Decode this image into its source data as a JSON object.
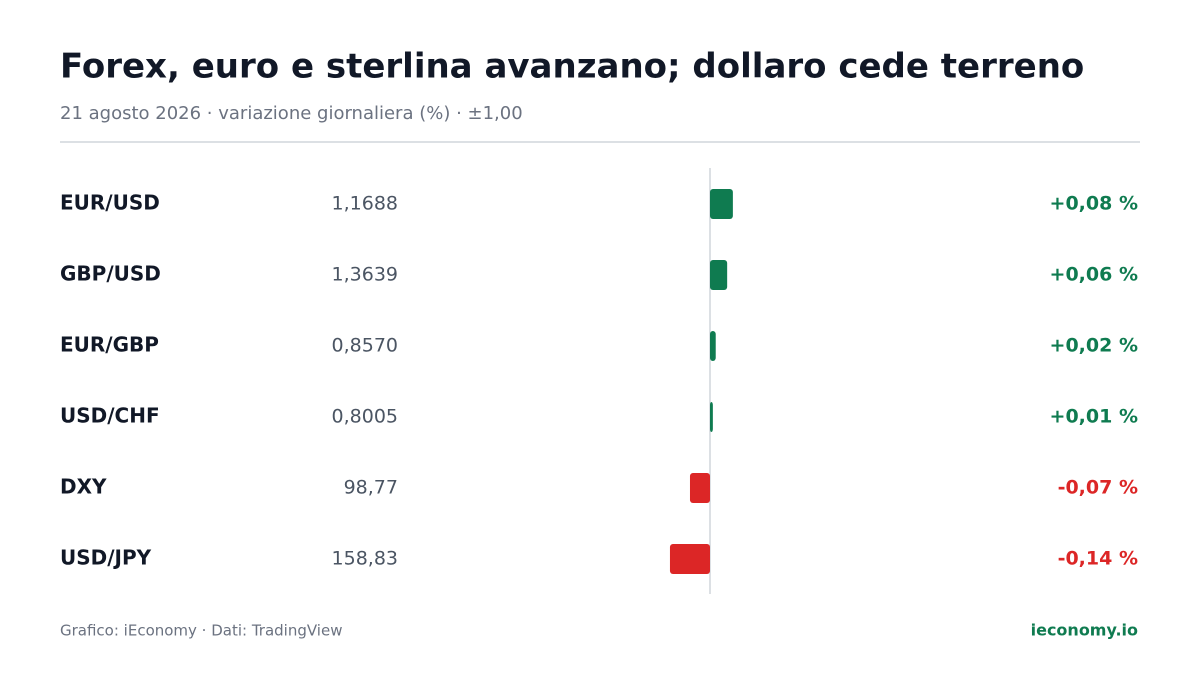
{
  "chart_data": {
    "type": "bar",
    "orientation": "horizontal",
    "title": "Forex, euro e sterlina avanzano; dollaro cede terreno",
    "subtitle": "21 agosto 2026 · variazione giornaliera (%) · ±1,00",
    "categories": [
      "EUR/USD",
      "GBP/USD",
      "EUR/GBP",
      "USD/CHF",
      "DXY",
      "USD/JPY"
    ],
    "prices": [
      "1,1688",
      "1,3639",
      "0,8570",
      "0,8005",
      "98,77",
      "158,83"
    ],
    "values": [
      0.08,
      0.06,
      0.02,
      0.01,
      -0.07,
      -0.14
    ],
    "value_labels": [
      "+0,08 %",
      "+0,06 %",
      "+0,02 %",
      "+0,01 %",
      "-0,07 %",
      "-0,14 %"
    ],
    "xlim": [
      -1,
      1
    ],
    "positive_color": "#0f7b50",
    "negative_color": "#dc2626",
    "source": "Grafico: iEconomy · Dati: TradingView",
    "brand": "ieconomy.io"
  }
}
